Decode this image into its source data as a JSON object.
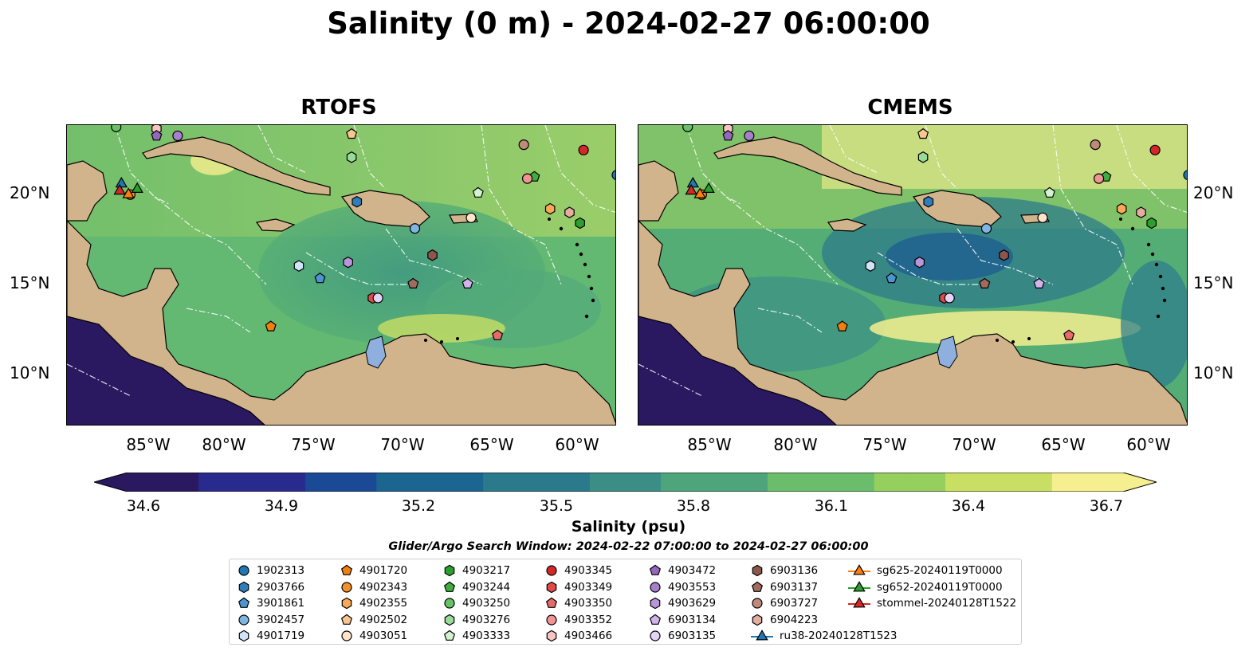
{
  "title": "Salinity (0 m) - 2024-02-27 06:00:00",
  "panels": [
    {
      "title": "RTOFS"
    },
    {
      "title": "CMEMS"
    }
  ],
  "axes": {
    "x_ticks": [
      "85°W",
      "80°W",
      "75°W",
      "70°W",
      "65°W",
      "60°W"
    ],
    "y_ticks": [
      "20°N",
      "15°N",
      "10°N"
    ]
  },
  "colorbar": {
    "label": "Salinity (psu)",
    "ticks": [
      "34.6",
      "34.9",
      "35.2",
      "35.5",
      "35.8",
      "36.1",
      "36.4",
      "36.7"
    ],
    "range": [
      34.6,
      36.7
    ],
    "colormap": "haline",
    "stops": [
      "#2a1860",
      "#282a8e",
      "#1a4a95",
      "#1b6591",
      "#2b7a8c",
      "#3a8e86",
      "#4ea57b",
      "#6bbd6c",
      "#95cf5d",
      "#c8df64",
      "#f6ef90"
    ]
  },
  "search_window": "Glider/Argo Search Window: 2024-02-22 07:00:00 to 2024-02-27 06:00:00",
  "colors": {
    "land": "#d2b48c",
    "lake": "#8fb0de",
    "pacific": "#2a1860"
  },
  "legend": [
    {
      "label": "1902313",
      "marker": "circle",
      "color": "#1f77b4"
    },
    {
      "label": "2903766",
      "marker": "hexagon",
      "color": "#2e7ebc"
    },
    {
      "label": "3901861",
      "marker": "pentagon",
      "color": "#4b96d2"
    },
    {
      "label": "3902457",
      "marker": "circle",
      "color": "#7fb5e3"
    },
    {
      "label": "4901719",
      "marker": "hexagon",
      "color": "#cfe5f7"
    },
    {
      "label": "4901720",
      "marker": "pentagon",
      "color": "#f07f0e"
    },
    {
      "label": "4902343",
      "marker": "circle",
      "color": "#f6902a"
    },
    {
      "label": "4902355",
      "marker": "hexagon",
      "color": "#f9a858"
    },
    {
      "label": "4902502",
      "marker": "pentagon",
      "color": "#fbc58f"
    },
    {
      "label": "4903051",
      "marker": "circle",
      "color": "#fde3c8"
    },
    {
      "label": "4903217",
      "marker": "hexagon",
      "color": "#2ca02c"
    },
    {
      "label": "4903244",
      "marker": "pentagon",
      "color": "#3fae3f"
    },
    {
      "label": "4903250",
      "marker": "circle",
      "color": "#65c365"
    },
    {
      "label": "4903276",
      "marker": "hexagon",
      "color": "#98da98"
    },
    {
      "label": "4903333",
      "marker": "pentagon",
      "color": "#d3f2cf"
    },
    {
      "label": "4903345",
      "marker": "circle",
      "color": "#d62728"
    },
    {
      "label": "4903349",
      "marker": "hexagon",
      "color": "#e04a4a"
    },
    {
      "label": "4903350",
      "marker": "pentagon",
      "color": "#e86a6a"
    },
    {
      "label": "4903352",
      "marker": "circle",
      "color": "#f09494"
    },
    {
      "label": "4903466",
      "marker": "hexagon",
      "color": "#f8c4c4"
    },
    {
      "label": "4903472",
      "marker": "pentagon",
      "color": "#9467bd"
    },
    {
      "label": "4903553",
      "marker": "circle",
      "color": "#a77fcb"
    },
    {
      "label": "4903629",
      "marker": "hexagon",
      "color": "#b996da"
    },
    {
      "label": "6903134",
      "marker": "pentagon",
      "color": "#d0b4ea"
    },
    {
      "label": "6903135",
      "marker": "circle",
      "color": "#e5d2f7"
    },
    {
      "label": "6903136",
      "marker": "hexagon",
      "color": "#8c564b"
    },
    {
      "label": "6903137",
      "marker": "pentagon",
      "color": "#a36b5d"
    },
    {
      "label": "6903727",
      "marker": "circle",
      "color": "#c08a7a"
    },
    {
      "label": "6904223",
      "marker": "hexagon",
      "color": "#e3ad9f"
    },
    {
      "label": "ru38-20240128T1523",
      "marker": "triangle-line",
      "color": "#1f77b4"
    },
    {
      "label": "sg625-20240119T0000",
      "marker": "triangle-line",
      "color": "#ff7f0e"
    },
    {
      "label": "sg652-20240119T0000",
      "marker": "triangle-line",
      "color": "#2ca02c"
    },
    {
      "label": "stommel-20240128T1522",
      "marker": "triangle-line",
      "color": "#d62728"
    }
  ],
  "observations": [
    {
      "id": "1902313",
      "lon": -58.2,
      "lat": 21.1
    },
    {
      "id": "2903766",
      "lon": -73.0,
      "lat": 19.6
    },
    {
      "id": "3901861",
      "lon": -75.1,
      "lat": 15.3
    },
    {
      "id": "3902457",
      "lon": -69.7,
      "lat": 18.1
    },
    {
      "id": "4901719",
      "lon": -76.3,
      "lat": 16.0
    },
    {
      "id": "4901720",
      "lon": -77.9,
      "lat": 12.6
    },
    {
      "id": "4902343",
      "lon": -85.9,
      "lat": 20.0
    },
    {
      "id": "4902355",
      "lon": -62.0,
      "lat": 19.2
    },
    {
      "id": "4902502",
      "lon": -73.3,
      "lat": 23.4
    },
    {
      "id": "4903051",
      "lon": -66.5,
      "lat": 18.7
    },
    {
      "id": "4903217",
      "lon": -60.3,
      "lat": 18.4
    },
    {
      "id": "4903244",
      "lon": -62.9,
      "lat": 21.0
    },
    {
      "id": "4903250",
      "lon": -86.7,
      "lat": 23.8
    },
    {
      "id": "4903276",
      "lon": -73.3,
      "lat": 22.1
    },
    {
      "id": "4903333",
      "lon": -66.1,
      "lat": 20.1
    },
    {
      "id": "4903345",
      "lon": -60.1,
      "lat": 22.5
    },
    {
      "id": "4903349",
      "lon": -72.1,
      "lat": 14.2
    },
    {
      "id": "4903350",
      "lon": -65.0,
      "lat": 12.1
    },
    {
      "id": "4903352",
      "lon": -63.3,
      "lat": 20.9
    },
    {
      "id": "4903466",
      "lon": -84.4,
      "lat": 23.7
    },
    {
      "id": "4903472",
      "lon": -84.4,
      "lat": 23.3
    },
    {
      "id": "4903553",
      "lon": -83.2,
      "lat": 23.3
    },
    {
      "id": "4903629",
      "lon": -73.5,
      "lat": 16.2
    },
    {
      "id": "6903134",
      "lon": -66.7,
      "lat": 15.0
    },
    {
      "id": "6903135",
      "lon": -71.8,
      "lat": 14.2
    },
    {
      "id": "6903136",
      "lon": -68.7,
      "lat": 16.6
    },
    {
      "id": "6903137",
      "lon": -69.8,
      "lat": 15.0
    },
    {
      "id": "6903727",
      "lon": -63.5,
      "lat": 22.8
    },
    {
      "id": "6904223",
      "lon": -60.9,
      "lat": 19.0
    }
  ],
  "gliders": [
    {
      "id": "ru38-20240128T1523",
      "lon": -86.4,
      "lat": 20.6
    },
    {
      "id": "sg625-20240119T0000",
      "lon": -86.0,
      "lat": 20.0
    },
    {
      "id": "sg652-20240119T0000",
      "lon": -85.5,
      "lat": 20.3
    },
    {
      "id": "stommel-20240128T1522",
      "lon": -86.5,
      "lat": 20.2
    }
  ]
}
